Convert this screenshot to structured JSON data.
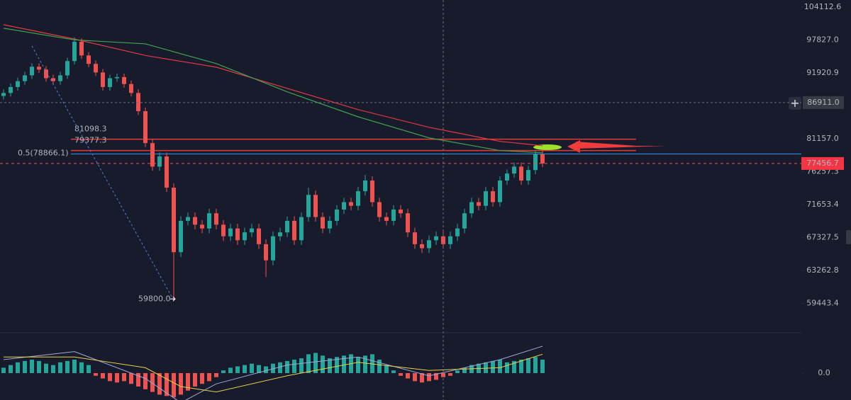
{
  "chart_data": [
    {
      "type": "candlestick",
      "log_scale": true,
      "up_color": "#26a69a",
      "down_color": "#ef5350",
      "ylim": [
        56250,
        105500
      ],
      "yticks": [
        104112.6,
        {
          "value": 97827,
          "label": "97827.0"
        },
        91920.9,
        {
          "value": 81157,
          "label": "81157.0"
        },
        76257.3,
        71653.4,
        67327.5,
        63262.8,
        59443.4
      ],
      "open": [
        88000,
        88500,
        89500,
        90500,
        91500,
        93000,
        92500,
        91000,
        90500,
        91500,
        94000,
        97500,
        95000,
        93500,
        92000,
        89500,
        91000,
        91200,
        90000,
        88500,
        85500,
        80500,
        77000,
        78500,
        74000,
        65500,
        69500,
        70000,
        69000,
        68500,
        70500,
        69000,
        67500,
        68500,
        67000,
        68000,
        68500,
        66500,
        64500,
        67500,
        68000,
        69500,
        67000,
        70000,
        73000,
        70000,
        68500,
        69500,
        71000,
        72000,
        71500,
        73500,
        75000,
        72000,
        70000,
        69500,
        71000,
        70500,
        68000,
        66500,
        66000,
        67000,
        67500,
        66500,
        67500,
        68500,
        70500,
        72000,
        71500,
        73500,
        72000,
        75000,
        76000,
        77000,
        75000,
        76500,
        78800
      ],
      "high": [
        89100,
        90100,
        91100,
        92100,
        93600,
        93600,
        93100,
        91600,
        92100,
        94600,
        98300,
        98100,
        95600,
        94100,
        92600,
        91600,
        91800,
        91800,
        90600,
        89100,
        86100,
        81100,
        79100,
        79100,
        74600,
        70100,
        70600,
        70600,
        69600,
        71100,
        71100,
        69600,
        69100,
        69100,
        68600,
        69100,
        69100,
        67100,
        68100,
        68600,
        70100,
        70100,
        70600,
        74000,
        73600,
        70600,
        70100,
        71600,
        72600,
        72600,
        74100,
        75800,
        75600,
        72600,
        70600,
        71600,
        71600,
        71100,
        68600,
        67100,
        67600,
        68100,
        68100,
        68100,
        69100,
        71100,
        72600,
        72600,
        74100,
        74100,
        75600,
        76600,
        77600,
        77600,
        77100,
        79400,
        79400
      ],
      "low": [
        87400,
        87900,
        88900,
        89900,
        90900,
        91900,
        90400,
        89900,
        89900,
        90900,
        93400,
        94400,
        92900,
        91400,
        88900,
        88900,
        90400,
        89400,
        87900,
        84900,
        79900,
        76400,
        76400,
        73400,
        59800,
        64900,
        68900,
        68400,
        67900,
        67900,
        68400,
        66900,
        66900,
        66400,
        66400,
        67400,
        65900,
        62500,
        63900,
        66900,
        67400,
        66400,
        66400,
        69400,
        69400,
        67900,
        67900,
        68900,
        70400,
        70900,
        70900,
        72900,
        71400,
        69400,
        68900,
        68900,
        69900,
        67400,
        65900,
        65400,
        65400,
        66400,
        65900,
        65900,
        66900,
        67900,
        69900,
        70900,
        70900,
        71400,
        71400,
        74400,
        75400,
        74400,
        74400,
        75900,
        76900
      ],
      "close": [
        88500,
        89500,
        90500,
        91500,
        93000,
        92500,
        91000,
        90500,
        91500,
        94000,
        97500,
        95000,
        93500,
        92000,
        89500,
        91000,
        91200,
        90000,
        88500,
        85500,
        80500,
        77000,
        78500,
        74000,
        65500,
        69500,
        70000,
        69000,
        68500,
        70500,
        69000,
        67500,
        68500,
        67000,
        68000,
        68500,
        66500,
        64500,
        67500,
        68000,
        69500,
        67000,
        70000,
        73000,
        70000,
        68500,
        69500,
        71000,
        72000,
        71500,
        73500,
        75000,
        72000,
        70000,
        69500,
        71000,
        70500,
        68000,
        66500,
        66000,
        67000,
        67500,
        66500,
        67500,
        68500,
        70500,
        72000,
        71500,
        73500,
        72000,
        75000,
        76000,
        77000,
        75000,
        76500,
        78800,
        77456.7
      ],
      "series": [
        {
          "color": "#e53945",
          "x": [
            0,
            10,
            20,
            30,
            40,
            50,
            60,
            70,
            76
          ],
          "values": [
            100690,
            98000,
            95000,
            92920,
            89270,
            85760,
            82940,
            80760,
            80100
          ]
        },
        {
          "color": "#3fa34d",
          "x": [
            0,
            10,
            20,
            30,
            40,
            50,
            60,
            70,
            76
          ],
          "values": [
            100020,
            97840,
            97110,
            93550,
            88690,
            84600,
            81300,
            79370,
            79040
          ]
        }
      ],
      "levels": [
        {
          "value": 81098.3,
          "label": "81098.3",
          "color": "#e53935"
        },
        {
          "value": 79377.3,
          "label": "79377.3",
          "color": "#e53935"
        },
        {
          "value": 78866.1,
          "label": "0.5(78866.1)",
          "color": "#2196f3"
        }
      ],
      "low_marker": {
        "value": 59800,
        "label": "59800.0"
      },
      "crosshair": {
        "x": 62,
        "value": 86911,
        "label": "86911.0"
      },
      "last_price": {
        "value": 77456.7,
        "label": "77456.7"
      }
    },
    {
      "type": "macd",
      "up_color": "#26a69a",
      "down_color": "#ef5350",
      "ylim": [
        -1000,
        1500
      ],
      "yticks": [
        {
          "value": 0,
          "label": "0.0"
        }
      ],
      "values": [
        200,
        300,
        400,
        450,
        500,
        450,
        350,
        300,
        400,
        450,
        500,
        400,
        300,
        -100,
        -200,
        -300,
        -350,
        -300,
        -400,
        -500,
        -600,
        -700,
        -800,
        -850,
        -900,
        -800,
        -650,
        -500,
        -400,
        -300,
        -150,
        100,
        200,
        250,
        300,
        350,
        300,
        250,
        350,
        400,
        450,
        500,
        550,
        700,
        750,
        650,
        550,
        600,
        650,
        700,
        600,
        650,
        700,
        500,
        300,
        100,
        -100,
        -200,
        -300,
        -350,
        -300,
        -250,
        -150,
        -100,
        100,
        200,
        300,
        350,
        400,
        450,
        500,
        400,
        450,
        500,
        550,
        600,
        500
      ],
      "series": [
        {
          "color": "#9fa8da",
          "x": [
            0,
            10,
            20,
            25,
            30,
            40,
            50,
            60,
            70,
            76
          ],
          "values": [
            500,
            800,
            -200,
            -1100,
            -400,
            300,
            600,
            -100,
            500,
            1000
          ]
        },
        {
          "color": "#e6d14a",
          "x": [
            0,
            10,
            20,
            25,
            30,
            40,
            50,
            60,
            70,
            76
          ],
          "values": [
            600,
            600,
            200,
            -500,
            -700,
            -100,
            400,
            100,
            200,
            700
          ]
        }
      ]
    }
  ]
}
